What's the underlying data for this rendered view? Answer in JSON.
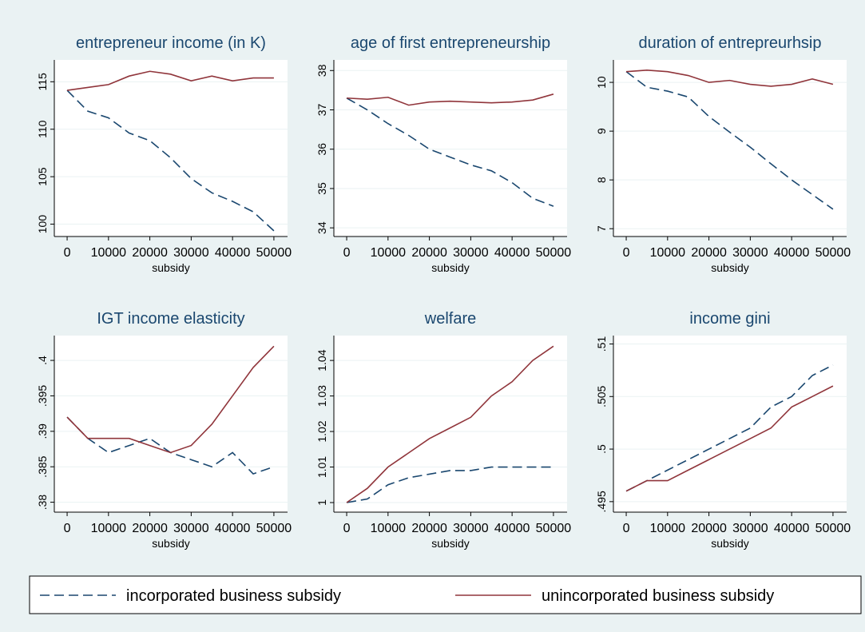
{
  "chart_data": [
    {
      "type": "line",
      "title": "entrepreneur income (in K)",
      "xlabel": "subsidy",
      "x": [
        0,
        5000,
        10000,
        15000,
        20000,
        25000,
        30000,
        35000,
        40000,
        45000,
        50000
      ],
      "xlim": [
        -3100,
        53300
      ],
      "xticks": [
        0,
        10000,
        20000,
        30000,
        40000,
        50000
      ],
      "ylim": [
        98.7,
        117.3
      ],
      "yticks": [
        100,
        105,
        110,
        115
      ],
      "grid": true,
      "series": [
        {
          "name": "incorporated business subsidy",
          "color": "#1a476f",
          "dash": true,
          "values": [
            114.1,
            111.9,
            111.2,
            109.6,
            108.8,
            107,
            104.8,
            103.3,
            102.4,
            101.3,
            99.3
          ]
        },
        {
          "name": "unincorporated business subsidy",
          "color": "#90353b",
          "dash": false,
          "values": [
            114.1,
            114.4,
            114.7,
            115.6,
            116.1,
            115.8,
            115.1,
            115.6,
            115.1,
            115.4,
            115.4
          ]
        }
      ]
    },
    {
      "type": "line",
      "title": "age of first entrepreneurship",
      "xlabel": "subsidy",
      "x": [
        0,
        5000,
        10000,
        15000,
        20000,
        25000,
        30000,
        35000,
        40000,
        45000,
        50000
      ],
      "xlim": [
        -3100,
        53300
      ],
      "xticks": [
        0,
        10000,
        20000,
        30000,
        40000,
        50000
      ],
      "ylim": [
        33.78,
        38.27
      ],
      "yticks": [
        34,
        35,
        36,
        37,
        38
      ],
      "grid": true,
      "series": [
        {
          "name": "incorporated business subsidy",
          "color": "#1a476f",
          "dash": true,
          "values": [
            37.3,
            37.0,
            36.65,
            36.35,
            36.0,
            35.8,
            35.6,
            35.45,
            35.15,
            34.75,
            34.55
          ]
        },
        {
          "name": "unincorporated business subsidy",
          "color": "#90353b",
          "dash": false,
          "values": [
            37.3,
            37.27,
            37.32,
            37.12,
            37.2,
            37.22,
            37.2,
            37.18,
            37.2,
            37.25,
            37.4
          ]
        }
      ]
    },
    {
      "type": "line",
      "title": "duration of entrepreurhsip",
      "xlabel": "subsidy",
      "x": [
        0,
        5000,
        10000,
        15000,
        20000,
        25000,
        30000,
        35000,
        40000,
        45000,
        50000
      ],
      "xlim": [
        -3100,
        53300
      ],
      "xticks": [
        0,
        10000,
        20000,
        30000,
        40000,
        50000
      ],
      "ylim": [
        6.84,
        10.46
      ],
      "yticks": [
        7,
        8,
        9,
        10
      ],
      "grid": true,
      "series": [
        {
          "name": "incorporated business subsidy",
          "color": "#1a476f",
          "dash": true,
          "values": [
            10.22,
            9.9,
            9.82,
            9.7,
            9.3,
            8.98,
            8.67,
            8.33,
            8.0,
            7.7,
            7.4
          ]
        },
        {
          "name": "unincorporated business subsidy",
          "color": "#90353b",
          "dash": false,
          "values": [
            10.22,
            10.25,
            10.22,
            10.14,
            10.0,
            10.04,
            9.96,
            9.92,
            9.96,
            10.07,
            9.96
          ]
        }
      ]
    },
    {
      "type": "line",
      "title": "IGT income elasticity",
      "xlabel": "subsidy",
      "x": [
        0,
        5000,
        10000,
        15000,
        20000,
        25000,
        30000,
        35000,
        40000,
        45000,
        50000
      ],
      "xlim": [
        -3100,
        53300
      ],
      "xticks": [
        0,
        10000,
        20000,
        30000,
        40000,
        50000
      ],
      "ylim": [
        0.3786,
        0.4035
      ],
      "yticks": [
        {
          "value": 0.38,
          "label": ".38"
        },
        {
          "value": 0.385,
          "label": ".385"
        },
        {
          "value": 0.39,
          "label": ".39"
        },
        {
          "value": 0.395,
          "label": ".395"
        },
        {
          "value": 0.4,
          "label": ".4"
        }
      ],
      "grid": true,
      "series": [
        {
          "name": "incorporated business subsidy",
          "color": "#1a476f",
          "dash": true,
          "values": [
            0.392,
            0.389,
            0.387,
            0.388,
            0.389,
            0.387,
            0.386,
            0.385,
            0.387,
            0.384,
            0.385
          ]
        },
        {
          "name": "unincorporated business subsidy",
          "color": "#90353b",
          "dash": false,
          "values": [
            0.392,
            0.389,
            0.389,
            0.389,
            0.388,
            0.387,
            0.388,
            0.391,
            0.395,
            0.399,
            0.402
          ]
        }
      ]
    },
    {
      "type": "line",
      "title": "welfare",
      "xlabel": "subsidy",
      "x": [
        0,
        5000,
        10000,
        15000,
        20000,
        25000,
        30000,
        35000,
        40000,
        45000,
        50000
      ],
      "xlim": [
        -3100,
        53300
      ],
      "xticks": [
        0,
        10000,
        20000,
        30000,
        40000,
        50000
      ],
      "ylim": [
        0.9973,
        1.047
      ],
      "yticks": [
        1,
        1.01,
        1.02,
        1.03,
        1.04
      ],
      "grid": true,
      "series": [
        {
          "name": "incorporated business subsidy",
          "color": "#1a476f",
          "dash": true,
          "values": [
            1,
            1.001,
            1.005,
            1.007,
            1.008,
            1.009,
            1.009,
            1.01,
            1.01,
            1.01,
            1.01
          ]
        },
        {
          "name": "unincorporated business subsidy",
          "color": "#90353b",
          "dash": false,
          "values": [
            1,
            1.004,
            1.01,
            1.014,
            1.018,
            1.021,
            1.024,
            1.03,
            1.034,
            1.04,
            1.044
          ]
        }
      ]
    },
    {
      "type": "line",
      "title": "income gini",
      "xlabel": "subsidy",
      "x": [
        0,
        5000,
        10000,
        15000,
        20000,
        25000,
        30000,
        35000,
        40000,
        45000,
        50000
      ],
      "xlim": [
        -3100,
        53300
      ],
      "xticks": [
        0,
        10000,
        20000,
        30000,
        40000,
        50000
      ],
      "ylim": [
        0.494,
        0.5108
      ],
      "yticks": [
        {
          "value": 0.495,
          "label": ".495"
        },
        {
          "value": 0.5,
          "label": ".5"
        },
        {
          "value": 0.505,
          "label": ".505"
        },
        {
          "value": 0.51,
          "label": ".51"
        }
      ],
      "grid": true,
      "series": [
        {
          "name": "incorporated business subsidy",
          "color": "#1a476f",
          "dash": true,
          "values": [
            0.496,
            0.497,
            0.498,
            0.499,
            0.5,
            0.501,
            0.502,
            0.504,
            0.505,
            0.507,
            0.508
          ]
        },
        {
          "name": "unincorporated business subsidy",
          "color": "#90353b",
          "dash": false,
          "values": [
            0.496,
            0.497,
            0.497,
            0.498,
            0.499,
            0.5,
            0.501,
            0.502,
            0.504,
            0.505,
            0.506
          ]
        }
      ]
    }
  ]
}
